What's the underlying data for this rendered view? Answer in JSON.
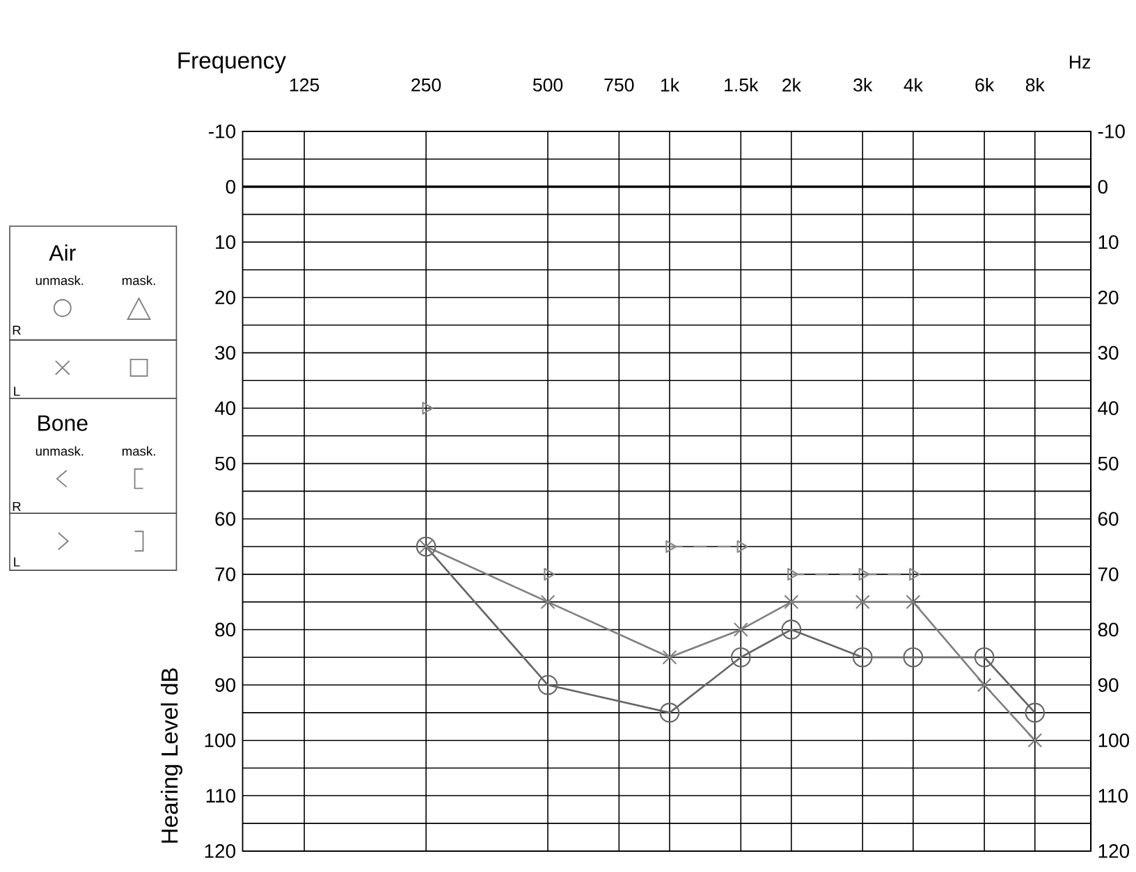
{
  "chart_data": {
    "type": "line",
    "xlabel": "Frequency",
    "ylabel": "Hearing Level dB",
    "annotations": [
      "Hz",
      "Air",
      "unmask.",
      "mask.",
      "R",
      "L",
      "Bone",
      "unmask.",
      "mask.",
      "R",
      "L"
    ],
    "log": "x",
    "xlim": [
      88,
      11000
    ],
    "xticks": [
      125,
      250,
      500,
      750,
      {
        "value": 1000,
        "label": "1k"
      },
      {
        "value": 1500,
        "label": "1.5k"
      },
      {
        "value": 2000,
        "label": "2k"
      },
      {
        "value": 3000,
        "label": "3k"
      },
      {
        "value": 4000,
        "label": "4k"
      },
      {
        "value": 6000,
        "label": "6k"
      },
      {
        "value": 8000,
        "label": "8k"
      }
    ],
    "ylim": [
      120,
      -10
    ],
    "yticks": [
      -10,
      {
        "value": -5,
        "label": null
      },
      0,
      {
        "value": 5,
        "label": null
      },
      10,
      {
        "value": 15,
        "label": null
      },
      20,
      {
        "value": 25,
        "label": null
      },
      30,
      {
        "value": 35,
        "label": null
      },
      40,
      {
        "value": 45,
        "label": null
      },
      50,
      {
        "value": 55,
        "label": null
      },
      60,
      {
        "value": 65,
        "label": null
      },
      70,
      {
        "value": 75,
        "label": null
      },
      80,
      {
        "value": 85,
        "label": null
      },
      90,
      {
        "value": 95,
        "label": null
      },
      100,
      {
        "value": 105,
        "label": null
      },
      110,
      {
        "value": 115,
        "label": null
      },
      120
    ],
    "y2lim": [
      120,
      -10
    ],
    "y2ticks": [
      -10,
      0,
      10,
      20,
      30,
      40,
      50,
      60,
      70,
      80,
      90,
      100,
      110,
      120
    ],
    "grid": true,
    "ref_lines": [
      {
        "axis": "y",
        "value": 0
      }
    ],
    "series": [
      {
        "color": "#666666",
        "marker": "circle",
        "x": [
          250,
          500,
          1000,
          1500,
          2000,
          3000,
          4000,
          6000,
          8000
        ],
        "values": [
          65,
          90,
          95,
          85,
          80,
          85,
          85,
          85,
          95
        ]
      },
      {
        "color": "#808080",
        "marker": "cross",
        "x": [
          250,
          500,
          1000,
          1500,
          2000,
          3000,
          4000,
          6000,
          8000
        ],
        "values": [
          65,
          75,
          85,
          80,
          75,
          75,
          75,
          90,
          100
        ]
      },
      {
        "type": "scatter",
        "color": "#888888",
        "marker": "triangle",
        "x": [
          250,
          500
        ],
        "values": [
          40,
          70
        ]
      },
      {
        "color": "#888888",
        "marker": "triangle",
        "line_style": "dashed",
        "x": [
          1000,
          1500
        ],
        "values": [
          65,
          65
        ]
      },
      {
        "color": "#888888",
        "marker": "triangle",
        "line_style": "dashed",
        "x": [
          2000,
          3000,
          4000
        ],
        "values": [
          70,
          70,
          70
        ]
      }
    ]
  }
}
